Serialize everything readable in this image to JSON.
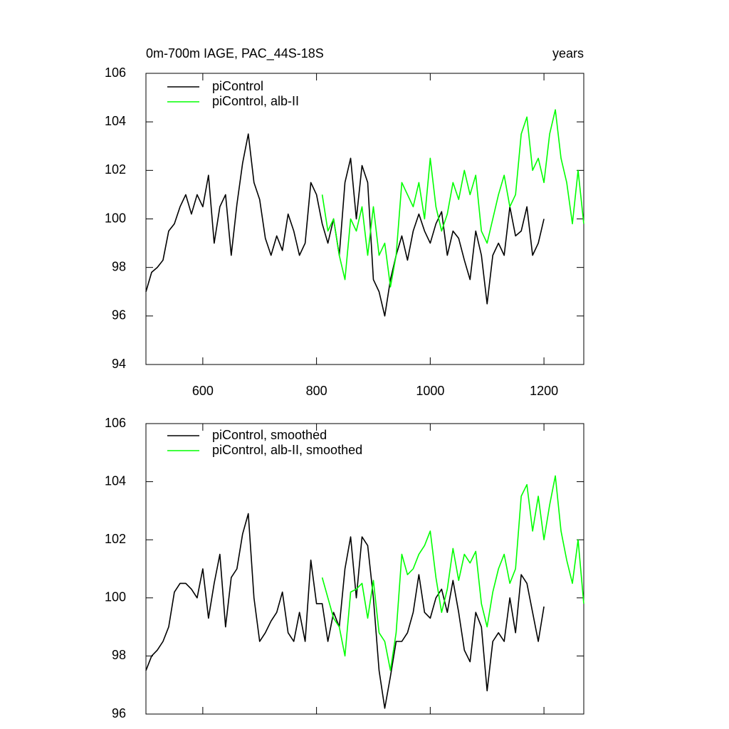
{
  "chart_data": [
    {
      "type": "line",
      "title": "0m-700m IAGE, PAC_44S-18S",
      "x_label": "years",
      "x": [
        500,
        510,
        520,
        530,
        540,
        550,
        560,
        570,
        580,
        590,
        600,
        610,
        620,
        630,
        640,
        650,
        660,
        670,
        680,
        690,
        700,
        710,
        720,
        730,
        740,
        750,
        760,
        770,
        780,
        790,
        800,
        810,
        820,
        830,
        840,
        850,
        860,
        870,
        880,
        890,
        900,
        910,
        920,
        930,
        940,
        950,
        960,
        970,
        980,
        990,
        1000,
        1010,
        1020,
        1030,
        1040,
        1050,
        1060,
        1070,
        1080,
        1090,
        1100,
        1110,
        1120,
        1130,
        1140,
        1150,
        1160,
        1170,
        1180,
        1190,
        1200,
        1210,
        1220,
        1230,
        1240,
        1250,
        1260,
        1270
      ],
      "series": [
        {
          "name": "piControl",
          "color": "#000000",
          "values": [
            97,
            97.8,
            98,
            98.3,
            99.5,
            99.8,
            100.5,
            101,
            100.2,
            101,
            100.5,
            101.8,
            99,
            100.5,
            101,
            98.5,
            100.6,
            102.3,
            103.5,
            101.5,
            100.8,
            99.2,
            98.5,
            99.3,
            98.7,
            100.2,
            99.5,
            98.5,
            99,
            101.5,
            101,
            99.8,
            99,
            100,
            98.5,
            101.5,
            102.5,
            100,
            102.2,
            101.5,
            97.5,
            97,
            96,
            97.5,
            98.5,
            99.3,
            98.3,
            99.5,
            100.2,
            99.5,
            99,
            99.8,
            100.3,
            98.5,
            99.5,
            99.2,
            98.3,
            97.5,
            99.5,
            98.5,
            96.5,
            98.5,
            99,
            98.5,
            100.5,
            99.3,
            99.5,
            100.5,
            98.5,
            99,
            100,
            null,
            null,
            null,
            null,
            null,
            null,
            null
          ]
        },
        {
          "name": "piControl, alb-II",
          "color": "#00ff00",
          "values": [
            null,
            null,
            null,
            null,
            null,
            null,
            null,
            null,
            null,
            null,
            null,
            null,
            null,
            null,
            null,
            null,
            null,
            null,
            null,
            null,
            null,
            null,
            null,
            null,
            null,
            null,
            null,
            null,
            null,
            null,
            null,
            101,
            99.5,
            100,
            98.5,
            97.5,
            100,
            99.5,
            100.5,
            98.5,
            100.5,
            98.5,
            99,
            97.2,
            98.5,
            101.5,
            101,
            100.5,
            101.5,
            100,
            102.5,
            100.5,
            99.5,
            100.2,
            101.5,
            100.8,
            102,
            101,
            101.8,
            99.5,
            99,
            100,
            101,
            101.8,
            100.5,
            101,
            103.5,
            104.2,
            102,
            102.5,
            101.5,
            103.5,
            104.5,
            102.5,
            101.5,
            99.8,
            102,
            99.8
          ]
        }
      ],
      "xlim": [
        500,
        1270
      ],
      "xticks": [
        600,
        800,
        1000,
        1200
      ],
      "ylim": [
        94,
        106
      ],
      "yticks": [
        94,
        96,
        98,
        100,
        102,
        104,
        106
      ]
    },
    {
      "type": "line",
      "x": [
        500,
        510,
        520,
        530,
        540,
        550,
        560,
        570,
        580,
        590,
        600,
        610,
        620,
        630,
        640,
        650,
        660,
        670,
        680,
        690,
        700,
        710,
        720,
        730,
        740,
        750,
        760,
        770,
        780,
        790,
        800,
        810,
        820,
        830,
        840,
        850,
        860,
        870,
        880,
        890,
        900,
        910,
        920,
        930,
        940,
        950,
        960,
        970,
        980,
        990,
        1000,
        1010,
        1020,
        1030,
        1040,
        1050,
        1060,
        1070,
        1080,
        1090,
        1100,
        1110,
        1120,
        1130,
        1140,
        1150,
        1160,
        1170,
        1180,
        1190,
        1200,
        1210,
        1220,
        1230,
        1240,
        1250,
        1260,
        1270
      ],
      "series": [
        {
          "name": "piControl, smoothed",
          "color": "#000000",
          "values": [
            97.5,
            98,
            98.2,
            98.5,
            99,
            100.2,
            100.5,
            100.5,
            100.3,
            100,
            101,
            99.3,
            100.5,
            101.5,
            99,
            100.7,
            101,
            102.2,
            102.9,
            100,
            98.5,
            98.8,
            99.2,
            99.5,
            100.2,
            98.8,
            98.5,
            99.5,
            98.5,
            101.3,
            99.8,
            99.8,
            98.5,
            99.5,
            99,
            101,
            102.1,
            100,
            102.1,
            101.8,
            100,
            97.5,
            96.2,
            97.3,
            98.5,
            98.5,
            98.8,
            99.5,
            100.8,
            99.5,
            99.3,
            100,
            100.3,
            99.5,
            100.6,
            99.5,
            98.2,
            97.8,
            99.5,
            99,
            96.8,
            98.5,
            98.8,
            98.5,
            100,
            98.8,
            100.8,
            100.5,
            99.5,
            98.5,
            99.7,
            null,
            null,
            null,
            null,
            null,
            null,
            null
          ]
        },
        {
          "name": "piControl, alb-II, smoothed",
          "color": "#00ff00",
          "values": [
            null,
            null,
            null,
            null,
            null,
            null,
            null,
            null,
            null,
            null,
            null,
            null,
            null,
            null,
            null,
            null,
            null,
            null,
            null,
            null,
            null,
            null,
            null,
            null,
            null,
            null,
            null,
            null,
            null,
            null,
            null,
            100.7,
            100,
            99.3,
            99,
            98,
            100.2,
            100.3,
            100.5,
            99.3,
            100.6,
            98.8,
            98.5,
            97.5,
            98.8,
            101.5,
            100.8,
            101,
            101.5,
            101.8,
            102.3,
            100.7,
            99.5,
            100.3,
            101.7,
            100.6,
            101.5,
            101.2,
            101.6,
            99.8,
            99,
            100.2,
            101,
            101.5,
            100.5,
            101,
            103.5,
            103.9,
            102.3,
            103.5,
            102,
            103.2,
            104.2,
            102.3,
            101.3,
            100.5,
            102,
            99.8
          ]
        }
      ],
      "xlim": [
        500,
        1270
      ],
      "xticks": [
        600,
        800,
        1000,
        1200
      ],
      "ylim": [
        96,
        106
      ],
      "yticks": [
        96,
        98,
        100,
        102,
        104,
        106
      ]
    }
  ]
}
